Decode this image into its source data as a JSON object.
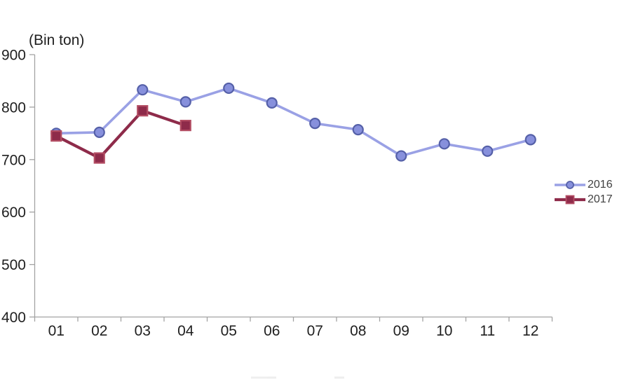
{
  "chart": {
    "unit_label": "(Bin ton)"
  },
  "legend": {
    "position": "right",
    "items": [
      {
        "label": "2016",
        "marker": "circle"
      },
      {
        "label": "2017",
        "marker": "square"
      }
    ]
  },
  "colors": {
    "series_2016_line": "#9aa1e5",
    "series_2016_marker_fill": "#8790dc",
    "series_2016_marker_stroke": "#5560a8",
    "series_2017_line": "#8e2b4a",
    "series_2017_marker_fill": "#8e2b4a",
    "series_2017_marker_stroke": "#b34d63",
    "axis": "#a3a3a3",
    "tick_text": "#1f1f1f",
    "legend_text": "#404040"
  },
  "chart_data": {
    "type": "line",
    "title": "",
    "xlabel": "",
    "ylabel": "(Bin ton)",
    "categories": [
      "01",
      "02",
      "03",
      "04",
      "05",
      "06",
      "07",
      "08",
      "09",
      "10",
      "11",
      "12"
    ],
    "series": [
      {
        "name": "2016",
        "marker": "circle",
        "values": [
          750,
          752,
          833,
          810,
          836,
          808,
          769,
          757,
          707,
          730,
          716,
          738
        ]
      },
      {
        "name": "2017",
        "marker": "square",
        "values": [
          745,
          703,
          793,
          765
        ]
      }
    ],
    "ylim": [
      400,
      900
    ],
    "yticks": [
      400,
      500,
      600,
      700,
      800,
      900
    ],
    "grid": false,
    "legend_position": "right"
  }
}
